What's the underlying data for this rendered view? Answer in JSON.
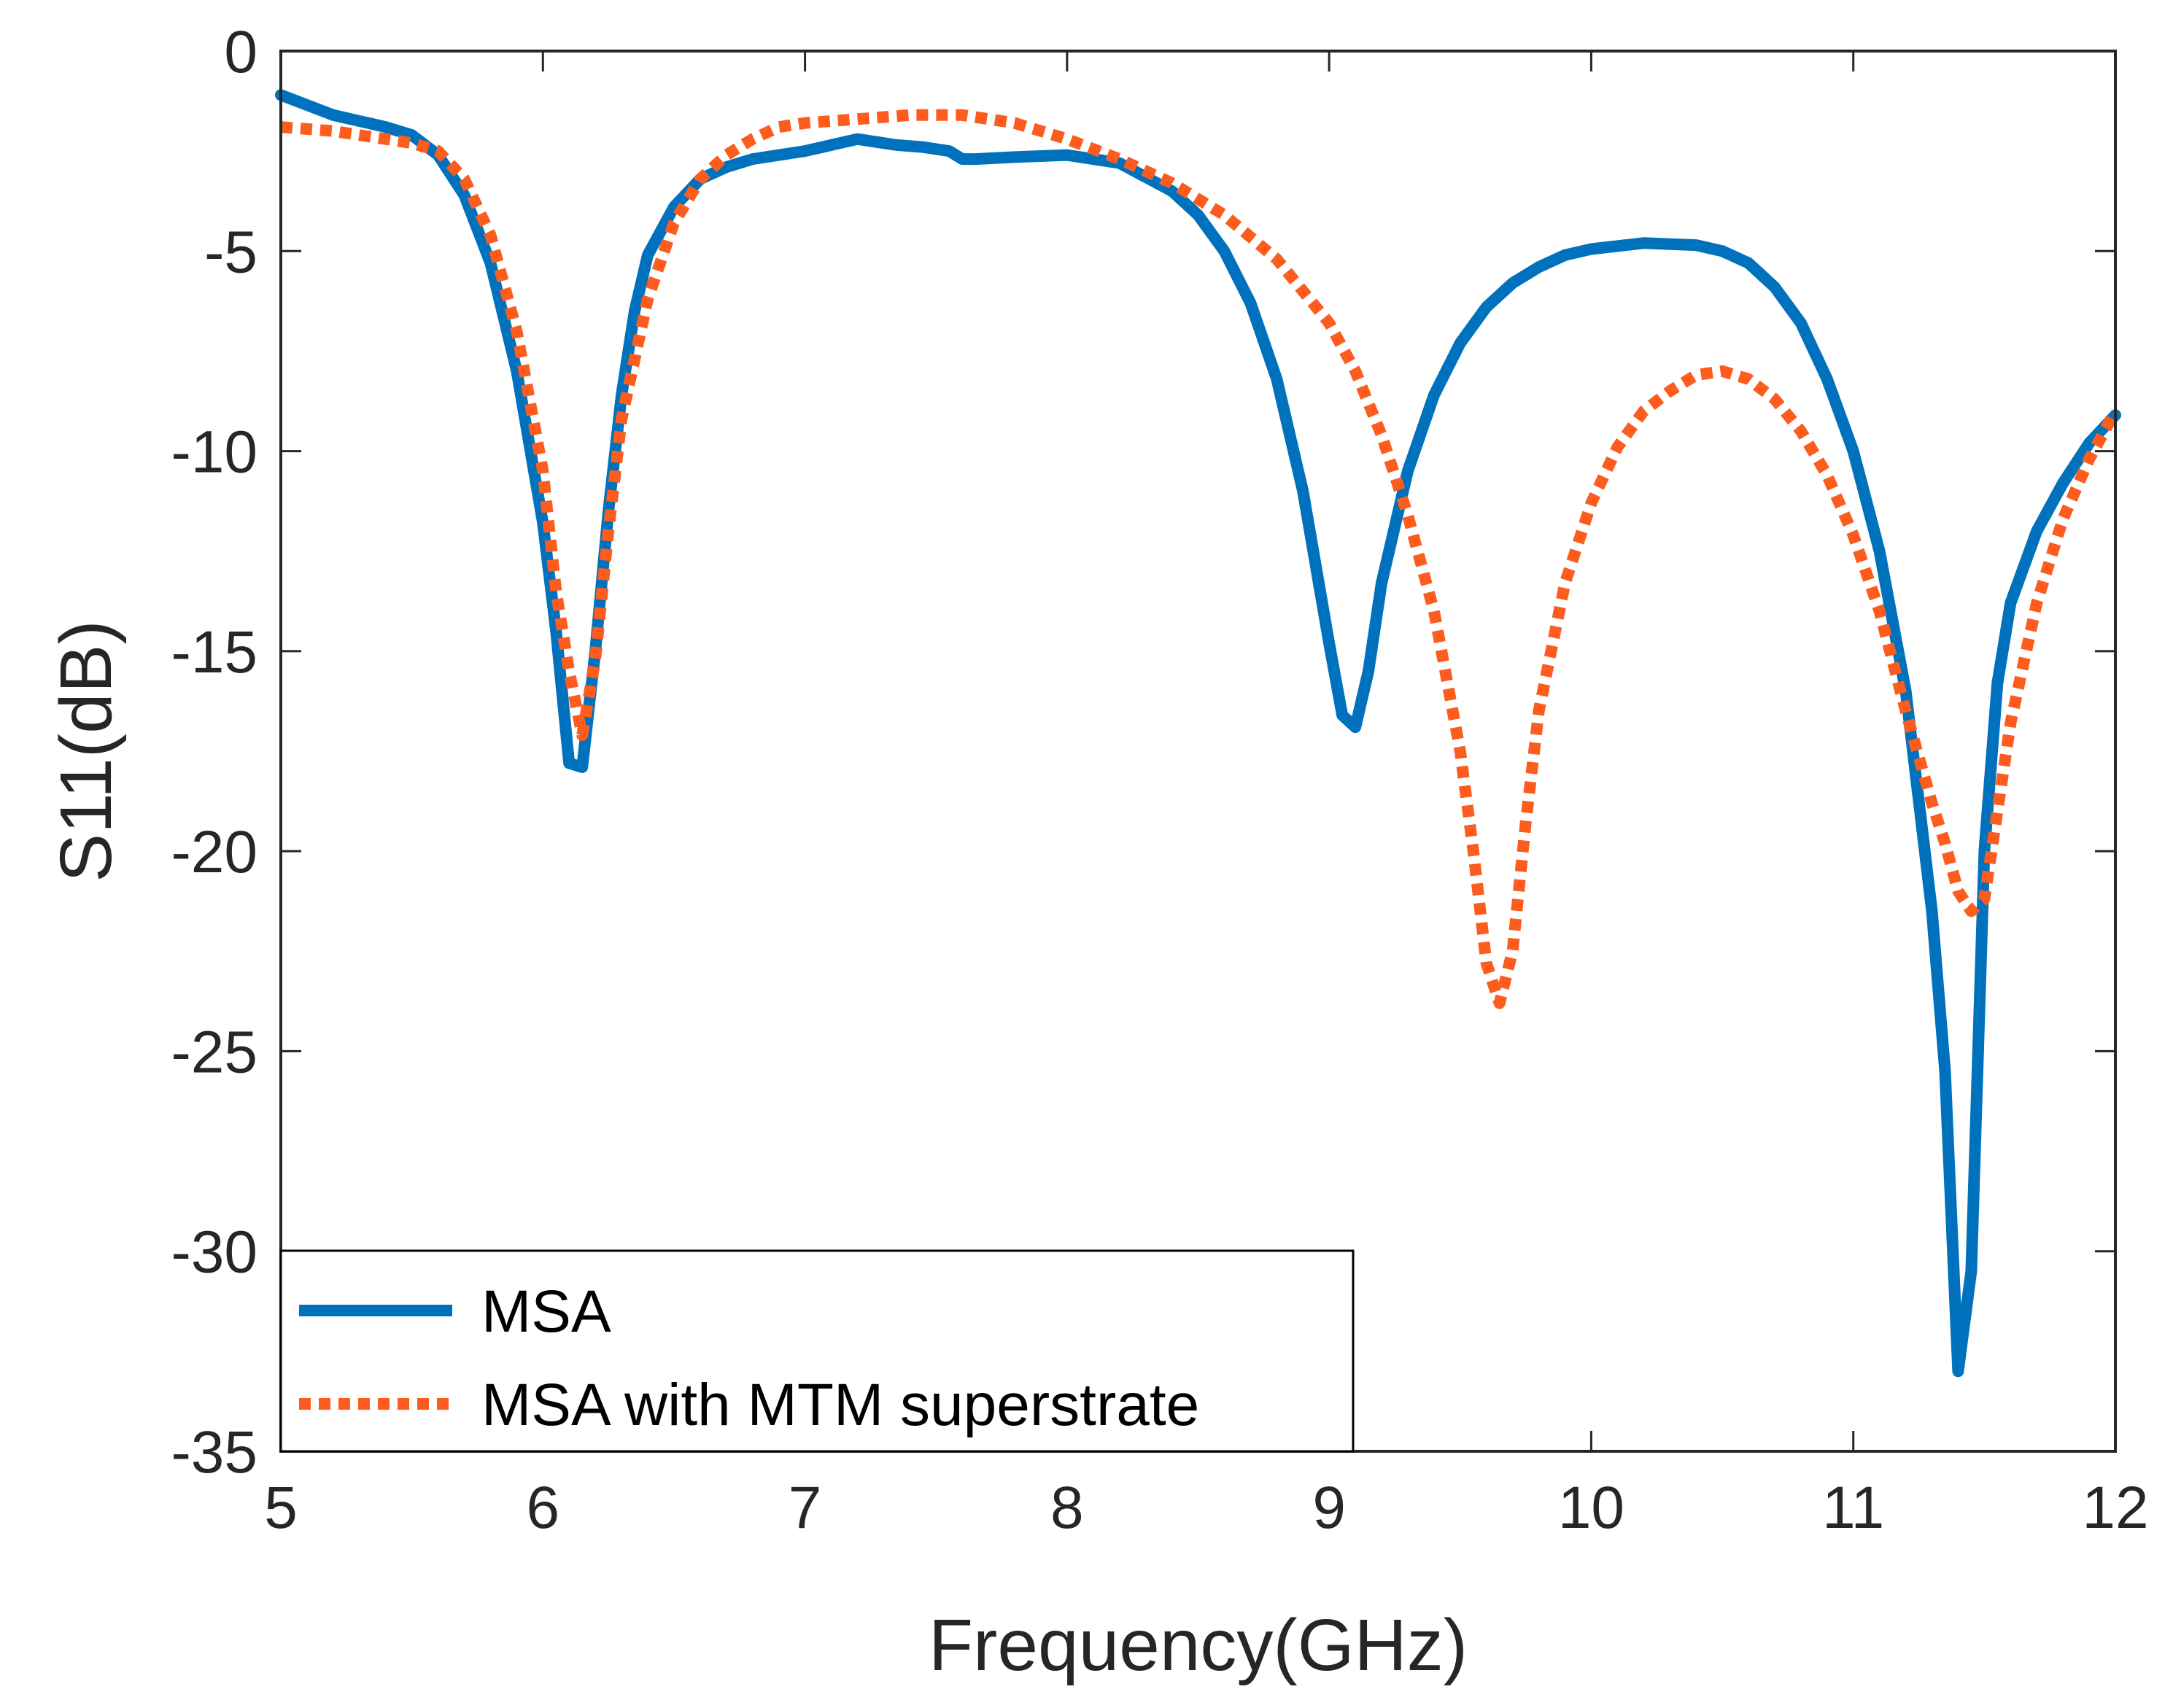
{
  "chart_data": {
    "type": "line",
    "title": "",
    "xlabel": "Frequency(GHz)",
    "ylabel": "S11(dB)",
    "xlim": [
      5,
      12
    ],
    "ylim": [
      -35,
      0
    ],
    "xticks": [
      "5",
      "6",
      "7",
      "8",
      "9",
      "10",
      "11",
      "12"
    ],
    "yticks": [
      "0",
      "-5",
      "-10",
      "-15",
      "-20",
      "-25",
      "-30",
      "-35"
    ],
    "grid": false,
    "legend_position": "bottom-left",
    "series": [
      {
        "name": "MSA",
        "color": "#0072BD",
        "style": "solid",
        "x": [
          5.0,
          5.2,
          5.4,
          5.5,
          5.6,
          5.7,
          5.8,
          5.9,
          6.0,
          6.05,
          6.1,
          6.15,
          6.2,
          6.25,
          6.3,
          6.35,
          6.4,
          6.5,
          6.6,
          6.7,
          6.8,
          6.9,
          7.0,
          7.2,
          7.3,
          7.35,
          7.45,
          7.55,
          7.6,
          7.65,
          7.8,
          8.0,
          8.2,
          8.4,
          8.5,
          8.6,
          8.7,
          8.8,
          8.9,
          9.0,
          9.05,
          9.1,
          9.15,
          9.2,
          9.3,
          9.4,
          9.5,
          9.6,
          9.7,
          9.8,
          9.9,
          10.0,
          10.2,
          10.4,
          10.5,
          10.6,
          10.7,
          10.8,
          10.9,
          11.0,
          11.1,
          11.2,
          11.3,
          11.35,
          11.4,
          11.45,
          11.5,
          11.55,
          11.6,
          11.7,
          11.8,
          11.9,
          12.0
        ],
        "y": [
          -1.1,
          -1.6,
          -1.9,
          -2.1,
          -2.6,
          -3.6,
          -5.3,
          -8.0,
          -11.8,
          -14.5,
          -17.8,
          -17.9,
          -15.0,
          -11.5,
          -8.6,
          -6.5,
          -5.1,
          -3.9,
          -3.2,
          -2.9,
          -2.7,
          -2.6,
          -2.5,
          -2.2,
          -2.3,
          -2.35,
          -2.4,
          -2.5,
          -2.7,
          -2.7,
          -2.65,
          -2.6,
          -2.8,
          -3.5,
          -4.1,
          -5.0,
          -6.3,
          -8.2,
          -11.0,
          -14.8,
          -16.6,
          -16.9,
          -15.5,
          -13.3,
          -10.5,
          -8.6,
          -7.3,
          -6.4,
          -5.8,
          -5.4,
          -5.1,
          -4.95,
          -4.8,
          -4.85,
          -5.0,
          -5.3,
          -5.9,
          -6.8,
          -8.2,
          -10.0,
          -12.5,
          -16.0,
          -21.5,
          -25.5,
          -33.0,
          -30.5,
          -20.0,
          -15.8,
          -13.8,
          -12.0,
          -10.8,
          -9.8,
          -9.1
        ]
      },
      {
        "name": "MSA with MTM superstrate",
        "color": "#FC5C1E",
        "style": "dotted",
        "x": [
          5.0,
          5.2,
          5.4,
          5.5,
          5.6,
          5.7,
          5.8,
          5.9,
          6.0,
          6.05,
          6.1,
          6.15,
          6.2,
          6.25,
          6.3,
          6.4,
          6.5,
          6.6,
          6.7,
          6.8,
          6.9,
          7.0,
          7.2,
          7.4,
          7.6,
          7.8,
          8.0,
          8.2,
          8.4,
          8.6,
          8.8,
          9.0,
          9.1,
          9.2,
          9.3,
          9.4,
          9.5,
          9.55,
          9.6,
          9.65,
          9.7,
          9.75,
          9.8,
          9.9,
          10.0,
          10.1,
          10.2,
          10.3,
          10.4,
          10.5,
          10.6,
          10.7,
          10.8,
          10.9,
          11.0,
          11.1,
          11.2,
          11.3,
          11.35,
          11.4,
          11.45,
          11.5,
          11.55,
          11.6,
          11.7,
          11.8,
          11.9,
          12.0
        ],
        "y": [
          -1.9,
          -2.0,
          -2.2,
          -2.3,
          -2.5,
          -3.2,
          -4.6,
          -7.0,
          -10.5,
          -13.5,
          -15.5,
          -17.1,
          -15.2,
          -12.0,
          -9.2,
          -6.2,
          -4.3,
          -3.2,
          -2.6,
          -2.2,
          -1.9,
          -1.8,
          -1.7,
          -1.6,
          -1.6,
          -1.8,
          -2.2,
          -2.7,
          -3.3,
          -4.1,
          -5.2,
          -6.8,
          -8.0,
          -9.6,
          -11.6,
          -14.0,
          -17.5,
          -20.0,
          -22.8,
          -23.8,
          -22.5,
          -19.3,
          -16.5,
          -13.3,
          -11.3,
          -9.9,
          -9.0,
          -8.5,
          -8.1,
          -8.0,
          -8.2,
          -8.7,
          -9.5,
          -10.6,
          -12.1,
          -14.0,
          -16.5,
          -18.8,
          -19.8,
          -21.0,
          -21.5,
          -21.2,
          -19.0,
          -16.8,
          -13.8,
          -11.7,
          -10.2,
          -9.0
        ]
      }
    ]
  }
}
